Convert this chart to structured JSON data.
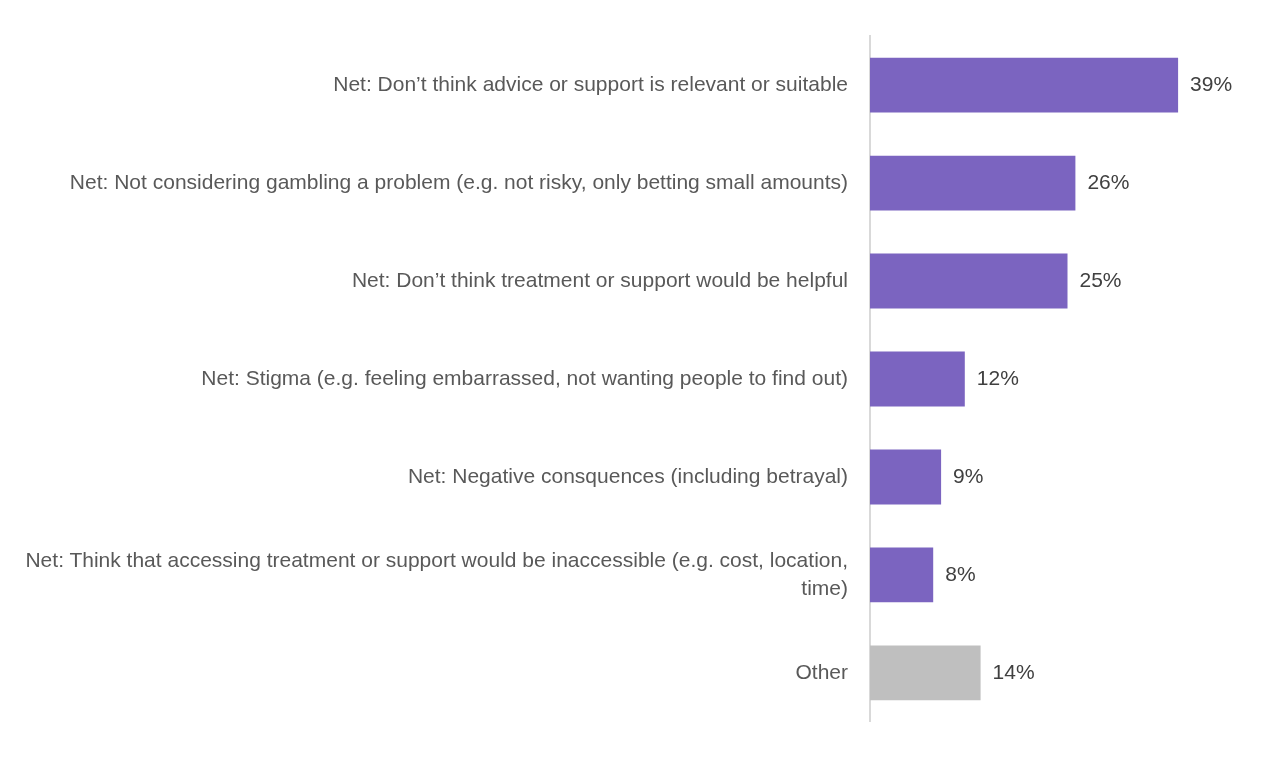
{
  "chart_data": {
    "type": "bar",
    "orientation": "horizontal",
    "categories": [
      "Net: Don’t think advice or support is relevant or suitable",
      "Net: Not considering gambling a problem (e.g. not risky, only betting small amounts)",
      "Net: Don’t think treatment or support would be helpful",
      "Net: Stigma (e.g. feeling embarrassed, not wanting people to find out)",
      "Net: Negative consquences (including betrayal)",
      "Net: Think that accessing treatment or support would be inaccessible (e.g. cost, location, time)",
      "Other"
    ],
    "values": [
      39,
      26,
      25,
      12,
      9,
      8,
      14
    ],
    "colors": [
      "#7b64c0",
      "#7b64c0",
      "#7b64c0",
      "#7b64c0",
      "#7b64c0",
      "#7b64c0",
      "#bfbfbf"
    ],
    "value_labels": [
      "39%",
      "26%",
      "25%",
      "12%",
      "9%",
      "8%",
      "14%"
    ],
    "tick_labels": "y",
    "legend": false
  }
}
